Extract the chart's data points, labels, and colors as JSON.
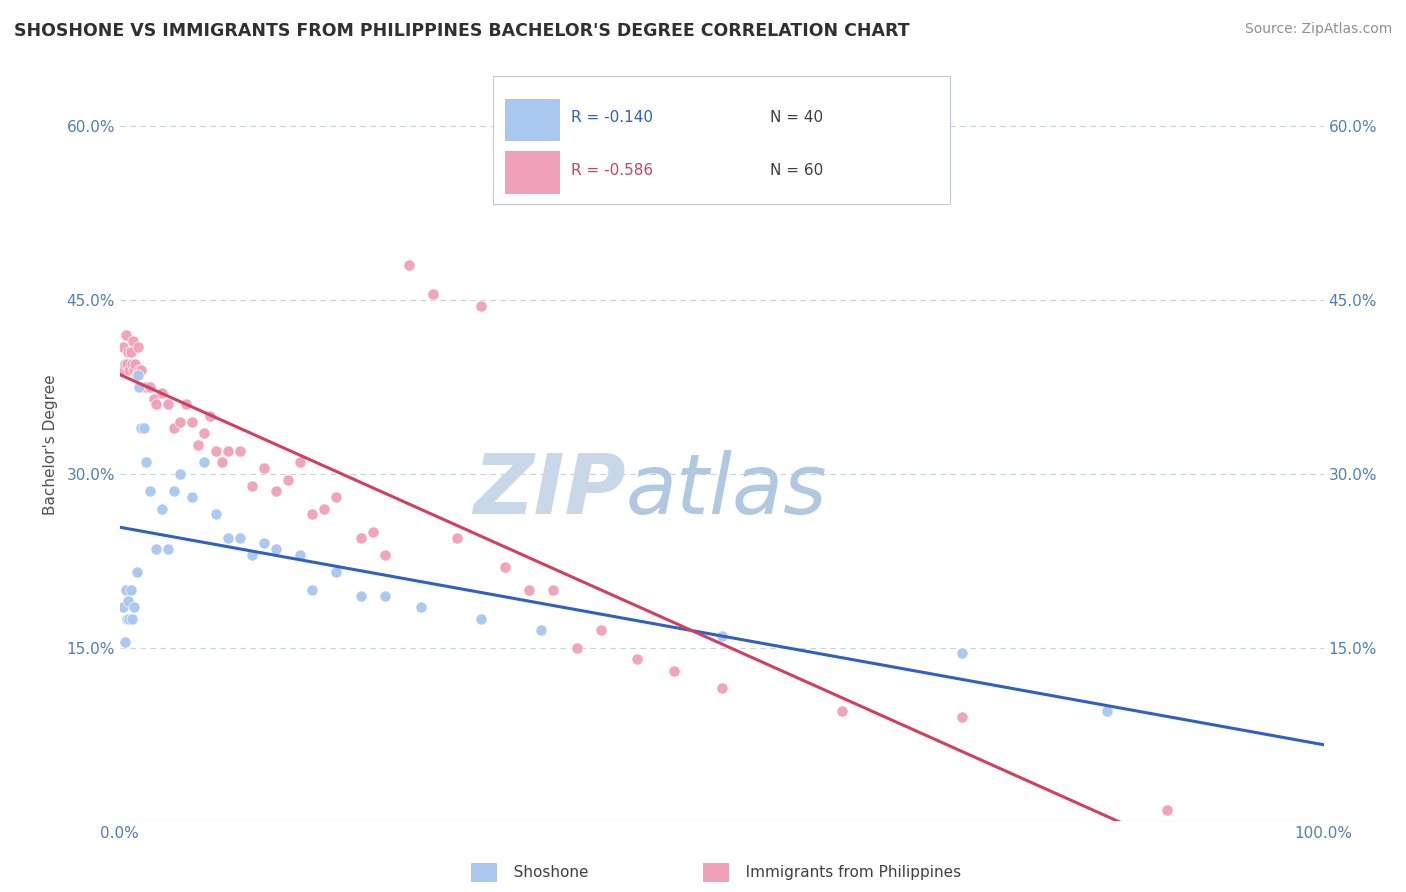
{
  "title": "SHOSHONE VS IMMIGRANTS FROM PHILIPPINES BACHELOR'S DEGREE CORRELATION CHART",
  "source_text": "Source: ZipAtlas.com",
  "ylabel": "Bachelor's Degree",
  "xlabel": "",
  "xlim": [
    0.0,
    1.0
  ],
  "ylim": [
    0.0,
    0.65
  ],
  "xticks": [
    0.0,
    0.1,
    0.2,
    0.3,
    0.4,
    0.5,
    0.6,
    0.7,
    0.8,
    0.9,
    1.0
  ],
  "yticks": [
    0.0,
    0.15,
    0.3,
    0.45,
    0.6
  ],
  "ytick_labels": [
    "",
    "15.0%",
    "30.0%",
    "45.0%",
    "60.0%"
  ],
  "xtick_labels": [
    "0.0%",
    "",
    "",
    "",
    "",
    "",
    "",
    "",
    "",
    "",
    "100.0%"
  ],
  "shoshone_color": "#a8c8f0",
  "philippines_color": "#f0a0b8",
  "shoshone_line_color": "#3060c0",
  "philippines_line_color": "#d04060",
  "watermark_zip": "ZIP",
  "watermark_atlas": "atlas",
  "watermark_zip_color": "#c8d8e8",
  "watermark_atlas_color": "#b0c8e0",
  "background_color": "#ffffff",
  "grid_color": "#c8d0dc",
  "title_color": "#303030",
  "axis_label_color": "#505050",
  "tick_label_color": "#5080b0",
  "legend_r1": "R = -0.140",
  "legend_n1": "N = 40",
  "legend_r2": "R = -0.586",
  "legend_n2": "N = 60",
  "shoshone_x": [
    0.003,
    0.004,
    0.005,
    0.006,
    0.007,
    0.008,
    0.009,
    0.01,
    0.012,
    0.014,
    0.015,
    0.016,
    0.018,
    0.02,
    0.022,
    0.025,
    0.03,
    0.035,
    0.04,
    0.045,
    0.05,
    0.06,
    0.07,
    0.08,
    0.09,
    0.1,
    0.11,
    0.12,
    0.13,
    0.15,
    0.16,
    0.18,
    0.2,
    0.22,
    0.25,
    0.3,
    0.35,
    0.5,
    0.7,
    0.82
  ],
  "shoshone_y": [
    0.185,
    0.155,
    0.2,
    0.175,
    0.19,
    0.175,
    0.2,
    0.175,
    0.185,
    0.215,
    0.385,
    0.375,
    0.34,
    0.34,
    0.31,
    0.285,
    0.235,
    0.27,
    0.235,
    0.285,
    0.3,
    0.28,
    0.31,
    0.265,
    0.245,
    0.245,
    0.23,
    0.24,
    0.235,
    0.23,
    0.2,
    0.215,
    0.195,
    0.195,
    0.185,
    0.175,
    0.165,
    0.16,
    0.145,
    0.095
  ],
  "philippines_x": [
    0.002,
    0.003,
    0.004,
    0.005,
    0.006,
    0.007,
    0.008,
    0.009,
    0.01,
    0.011,
    0.012,
    0.013,
    0.014,
    0.015,
    0.016,
    0.018,
    0.02,
    0.022,
    0.025,
    0.028,
    0.03,
    0.035,
    0.04,
    0.045,
    0.05,
    0.055,
    0.06,
    0.065,
    0.07,
    0.075,
    0.08,
    0.085,
    0.09,
    0.1,
    0.11,
    0.12,
    0.13,
    0.14,
    0.15,
    0.16,
    0.17,
    0.18,
    0.2,
    0.21,
    0.22,
    0.24,
    0.26,
    0.28,
    0.3,
    0.32,
    0.34,
    0.36,
    0.38,
    0.4,
    0.43,
    0.46,
    0.5,
    0.6,
    0.7,
    0.87
  ],
  "philippines_y": [
    0.39,
    0.41,
    0.395,
    0.42,
    0.395,
    0.405,
    0.39,
    0.405,
    0.395,
    0.415,
    0.39,
    0.395,
    0.385,
    0.41,
    0.39,
    0.39,
    0.375,
    0.375,
    0.375,
    0.365,
    0.36,
    0.37,
    0.36,
    0.34,
    0.345,
    0.36,
    0.345,
    0.325,
    0.335,
    0.35,
    0.32,
    0.31,
    0.32,
    0.32,
    0.29,
    0.305,
    0.285,
    0.295,
    0.31,
    0.265,
    0.27,
    0.28,
    0.245,
    0.25,
    0.23,
    0.48,
    0.455,
    0.245,
    0.445,
    0.22,
    0.2,
    0.2,
    0.15,
    0.165,
    0.14,
    0.13,
    0.115,
    0.095,
    0.09,
    0.01
  ]
}
